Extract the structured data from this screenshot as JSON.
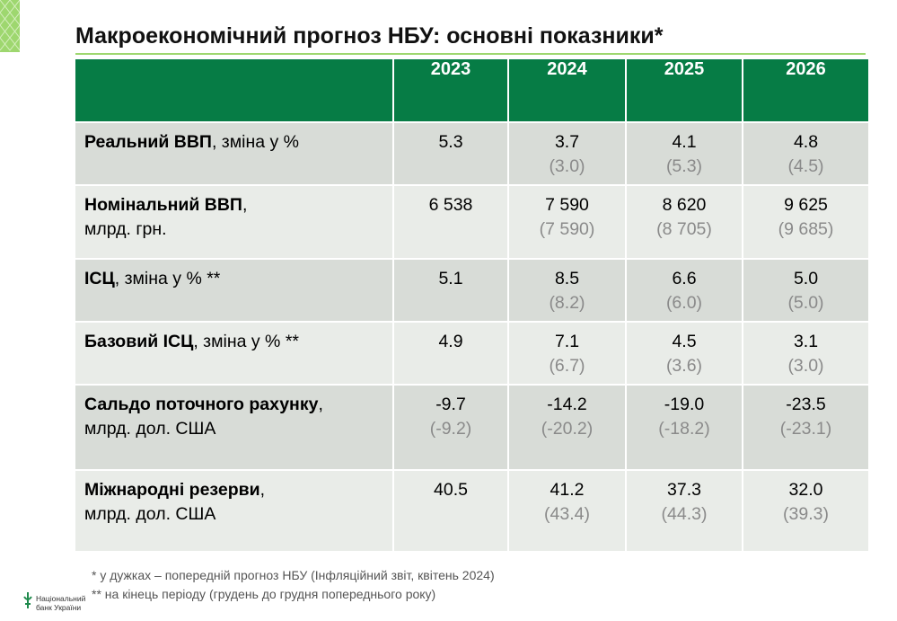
{
  "title": "Макроекономічний прогноз НБУ: основні показники*",
  "years": [
    "2023",
    "2024",
    "2025",
    "2026"
  ],
  "rows": [
    {
      "label_bold": "Реальний ВВП",
      "label_rest": ", зміна у %",
      "label_line2": "",
      "values": [
        "5.3",
        "3.7",
        "4.1",
        "4.8"
      ],
      "prev": [
        "",
        "(3.0)",
        "(5.3)",
        "(4.5)"
      ]
    },
    {
      "label_bold": "Номінальний ВВП",
      "label_rest": ",",
      "label_line2": "млрд. грн.",
      "values": [
        "6 538",
        "7 590",
        "8 620",
        "9 625"
      ],
      "prev": [
        "",
        "(7 590)",
        "(8 705)",
        "(9 685)"
      ]
    },
    {
      "label_bold": "ІСЦ",
      "label_rest": ", зміна у % **",
      "label_line2": "",
      "values": [
        "5.1",
        "8.5",
        "6.6",
        "5.0"
      ],
      "prev": [
        "",
        "(8.2)",
        "(6.0)",
        "(5.0)"
      ]
    },
    {
      "label_bold": "Базовий ІСЦ",
      "label_rest": ", зміна у % **",
      "label_line2": "",
      "values": [
        "4.9",
        "7.1",
        "4.5",
        "3.1"
      ],
      "prev": [
        "",
        "(6.7)",
        "(3.6)",
        "(3.0)"
      ]
    },
    {
      "label_bold": "Сальдо поточного рахунку",
      "label_rest": ",",
      "label_line2": "млрд. дол. США",
      "values": [
        "-9.7",
        "-14.2",
        "-19.0",
        "-23.5"
      ],
      "prev": [
        "(-9.2)",
        "(-20.2)",
        "(-18.2)",
        "(-23.1)"
      ]
    },
    {
      "label_bold": "Міжнародні резерви",
      "label_rest": ",",
      "label_line2": "млрд. дол. США",
      "values": [
        "40.5",
        "41.2",
        "37.3",
        "32.0"
      ],
      "prev": [
        "",
        "(43.4)",
        "(44.3)",
        "(39.3)"
      ]
    }
  ],
  "footnotes": [
    "* у дужках – попередній прогноз НБУ (Інфляційний звіт, квітень 2024)",
    "** на кінець періоду (грудень до грудня попереднього року)"
  ],
  "logo": {
    "line1": "Національний",
    "line2": "банк України",
    "icon": "nbu-logo-icon"
  },
  "colors": {
    "header_green": "#067c45",
    "row_dark": "#d8dcd7",
    "row_light": "#e9ece8",
    "accent": "#9ed76f"
  }
}
